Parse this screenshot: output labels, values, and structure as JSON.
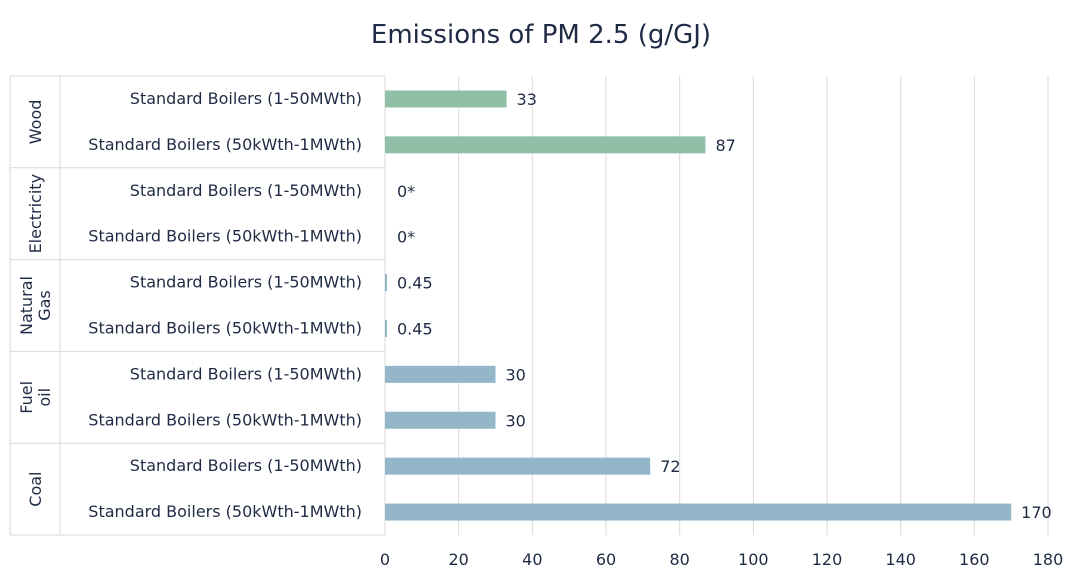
{
  "chart_data": {
    "type": "bar",
    "orientation": "horizontal",
    "title": "Emissions of PM 2.5 (g/GJ)",
    "xlabel": "",
    "ylabel": "",
    "xlim": [
      0,
      180
    ],
    "x_ticks": [
      "0",
      "20",
      "40",
      "60",
      "80",
      "100",
      "120",
      "140",
      "160",
      "180"
    ],
    "grid": "vertical",
    "legend": "none",
    "groups": [
      {
        "label": "Wood",
        "color": "#8fbfa6",
        "bars": [
          {
            "category": "Standard Boilers (1-50MWth)",
            "value": 33,
            "label": "33"
          },
          {
            "category": "Standard Boilers (50kWth-1MWth)",
            "value": 87,
            "label": "87"
          }
        ]
      },
      {
        "label": "Electricity",
        "color": "#93b7c9",
        "bars": [
          {
            "category": "Standard Boilers (1-50MWth)",
            "value": 0,
            "label": "0*"
          },
          {
            "category": "Standard Boilers (50kWth-1MWth)",
            "value": 0,
            "label": "0*"
          }
        ]
      },
      {
        "label": "Natural Gas",
        "color": "#93b7c9",
        "bars": [
          {
            "category": "Standard Boilers (1-50MWth)",
            "value": 0.45,
            "label": "0.45"
          },
          {
            "category": "Standard Boilers (50kWth-1MWth)",
            "value": 0.45,
            "label": "0.45"
          }
        ]
      },
      {
        "label": "Fuel oil",
        "color": "#93b7c9",
        "bars": [
          {
            "category": "Standard Boilers (1-50MWth)",
            "value": 30,
            "label": "30"
          },
          {
            "category": "Standard Boilers (50kWth-1MWth)",
            "value": 30,
            "label": "30"
          }
        ]
      },
      {
        "label": "Coal",
        "color": "#93b7c9",
        "bars": [
          {
            "category": "Standard Boilers (1-50MWth)",
            "value": 72,
            "label": "72"
          },
          {
            "category": "Standard Boilers (50kWth-1MWth)",
            "value": 170,
            "label": "170"
          }
        ]
      }
    ]
  }
}
